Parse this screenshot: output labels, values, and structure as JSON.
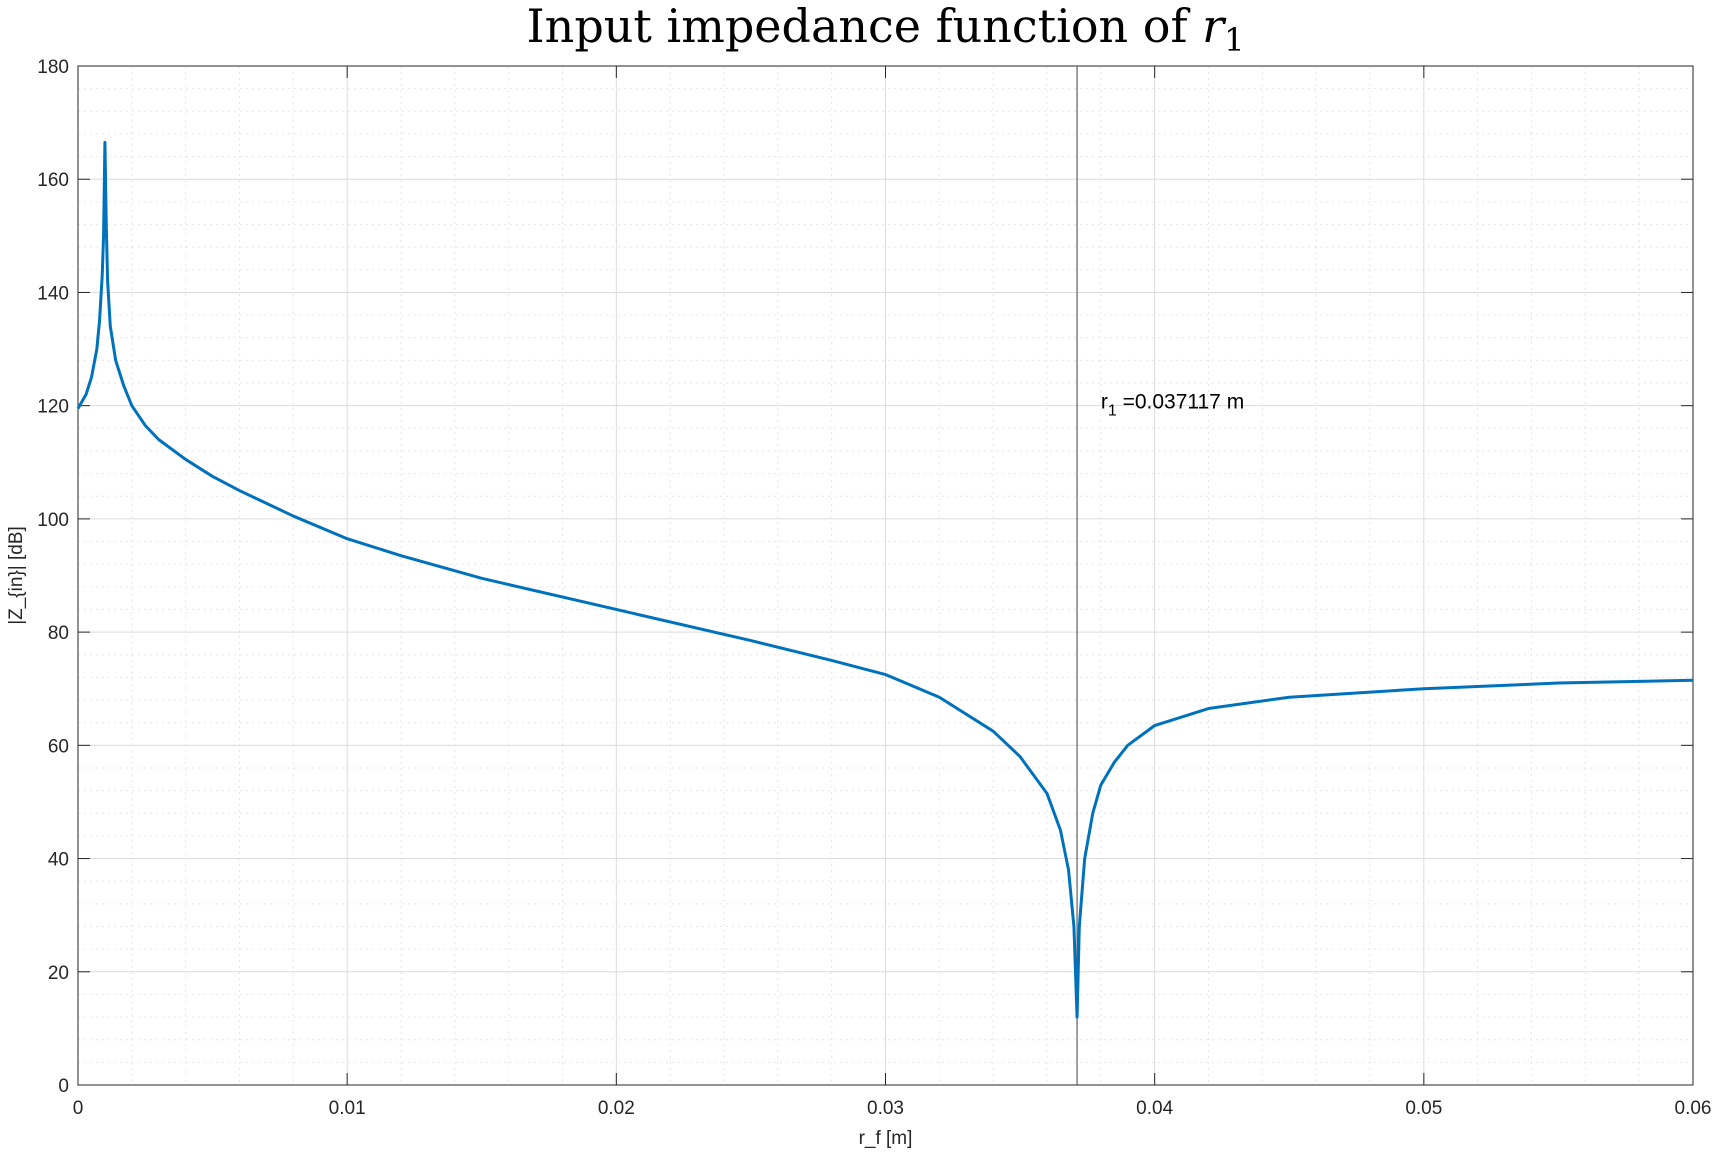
{
  "chart_data": {
    "type": "line",
    "title": "Input impedance function of ",
    "title_math_symbol": "r",
    "title_math_sub": "1",
    "xlabel": "r_f [m]",
    "ylabel": "|Z_{in}| [dB]",
    "xlim": [
      0,
      0.06
    ],
    "ylim": [
      0,
      180
    ],
    "xticks": [
      0,
      0.01,
      0.02,
      0.03,
      0.04,
      0.05,
      0.06
    ],
    "xtick_labels": [
      "0",
      "0.01",
      "0.02",
      "0.03",
      "0.04",
      "0.05",
      "0.06"
    ],
    "yticks": [
      0,
      20,
      40,
      60,
      80,
      100,
      120,
      140,
      160,
      180
    ],
    "ytick_labels": [
      "0",
      "20",
      "40",
      "60",
      "80",
      "100",
      "120",
      "140",
      "160",
      "180"
    ],
    "grid": true,
    "minor_grid": true,
    "series": [
      {
        "color": "#0072BD",
        "x": [
          0,
          0.0003,
          0.0005,
          0.0007,
          0.0008,
          0.0009,
          0.00095,
          0.001,
          0.00105,
          0.0011,
          0.0012,
          0.0014,
          0.0017,
          0.002,
          0.0025,
          0.003,
          0.004,
          0.005,
          0.006,
          0.008,
          0.01,
          0.012,
          0.015,
          0.02,
          0.025,
          0.028,
          0.03,
          0.032,
          0.034,
          0.035,
          0.036,
          0.0365,
          0.0368,
          0.037,
          0.037117,
          0.0372,
          0.0374,
          0.0377,
          0.038,
          0.0385,
          0.039,
          0.04,
          0.042,
          0.045,
          0.05,
          0.055,
          0.06
        ],
        "y": [
          119.5,
          122,
          125,
          130,
          135,
          143,
          150,
          166.5,
          152,
          142,
          134,
          128,
          123.5,
          120,
          116.5,
          114,
          110.5,
          107.5,
          105,
          100.5,
          96.5,
          93.5,
          89.5,
          84,
          78.5,
          75,
          72.5,
          68.5,
          62.5,
          58,
          51.5,
          45,
          38,
          28,
          12,
          28,
          40,
          48,
          53,
          57,
          60,
          63.5,
          66.5,
          68.5,
          70,
          71,
          71.5
        ]
      }
    ],
    "vline": {
      "x": 0.037117,
      "color": "#606060"
    },
    "annotation": {
      "x": 0.038,
      "y": 120,
      "symbol": "r",
      "sub": "1",
      "text": " =0.037117 m"
    }
  }
}
